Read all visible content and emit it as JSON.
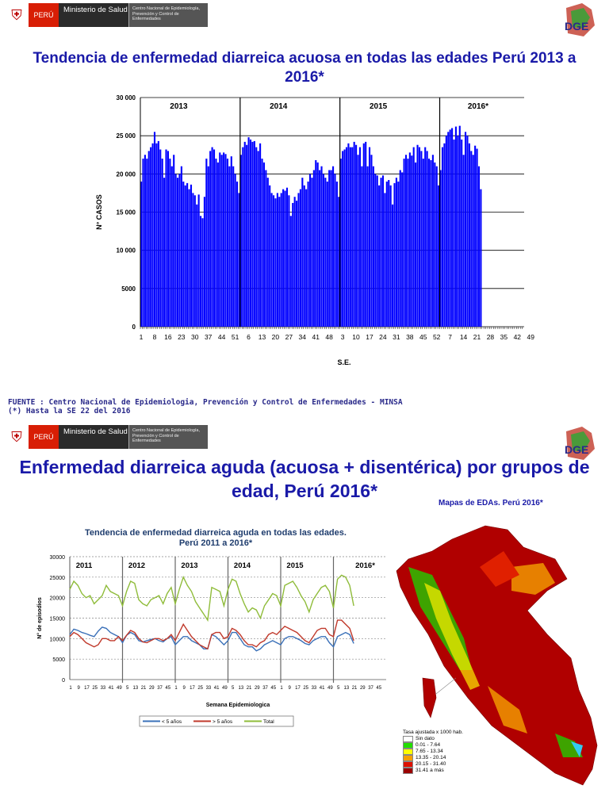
{
  "header": {
    "country": "PERÚ",
    "ministry": "Ministerio de Salud",
    "center": "Centro Nacional de Epidemiología, Prevención y Control de Enfermedades",
    "logo_text": "DGE"
  },
  "slide1": {
    "title": "Tendencia de enfermedad diarreica acuosa en todas las edades Perú 2013 a 2016*",
    "source": "FUENTE : Centro Nacional de Epidemiologia, Prevención y Control de Enfermedades - MINSA",
    "note": "(*) Hasta la SE 22 del 2016"
  },
  "slide2": {
    "title": "Enfermedad diarreica aguda (acuosa + disentérica) por grupos de edad, Perú 2016*",
    "map_title": "Mapas de EDAs. Perú 2016*",
    "map_legend": {
      "title": "Tasa ajustada x 1000 hab.",
      "items": [
        {
          "label": "Sin dato",
          "color": "#ffffff"
        },
        {
          "label": "0.01 - 7.64",
          "color": "#22dd00"
        },
        {
          "label": "7.65 - 13.34",
          "color": "#ffff00"
        },
        {
          "label": "13.35 - 20.14",
          "color": "#f5a000"
        },
        {
          "label": "20.15 - 31.40",
          "color": "#dd1100"
        },
        {
          "label": "31.41 a más",
          "color": "#9a0000"
        }
      ]
    }
  },
  "chart_data": [
    {
      "type": "bar",
      "title": "Tendencia de enfermedad diarreica acuosa en todas las edades Perú 2013 a 2016*",
      "xlabel": "S.E.",
      "ylabel": "N° CASOS",
      "ylim": [
        0,
        30000
      ],
      "yticks": [
        "0",
        "5000",
        "10 000",
        "15 000",
        "20 000",
        "25 000",
        "30 000"
      ],
      "xticks": [
        "1",
        "8",
        "16",
        "23",
        "30",
        "37",
        "44",
        "51",
        "6",
        "13",
        "20",
        "27",
        "34",
        "41",
        "48",
        "3",
        "10",
        "17",
        "24",
        "31",
        "38",
        "45",
        "52",
        "7",
        "14",
        "21",
        "28",
        "35",
        "42",
        "49"
      ],
      "years": [
        "2013",
        "2014",
        "2015",
        "2016*"
      ],
      "color": "#0000ff",
      "values": [
        19000,
        22000,
        22500,
        22000,
        23000,
        23500,
        24000,
        25500,
        24000,
        24300,
        23200,
        22000,
        19500,
        23200,
        23000,
        22000,
        21000,
        22500,
        20000,
        19500,
        20000,
        21000,
        19000,
        18500,
        18800,
        18000,
        18600,
        17500,
        17200,
        16000,
        17300,
        14500,
        14200,
        17000,
        22000,
        21000,
        23000,
        23500,
        23200,
        22000,
        21500,
        22800,
        22500,
        22800,
        22600,
        22000,
        21000,
        22300,
        21000,
        20000,
        19000,
        17500,
        22500,
        23500,
        24200,
        23800,
        24800,
        24500,
        24200,
        24300,
        23500,
        23000,
        24000,
        22000,
        21500,
        20500,
        19500,
        18500,
        17500,
        17200,
        16800,
        17500,
        17000,
        17500,
        18000,
        17800,
        18200,
        17200,
        14500,
        16200,
        17000,
        16500,
        17500,
        18000,
        19500,
        18500,
        18000,
        19000,
        20000,
        19500,
        20500,
        21800,
        21500,
        20500,
        21000,
        20000,
        19500,
        19000,
        20500,
        20500,
        21000,
        20000,
        19000,
        17000,
        22000,
        23000,
        23200,
        23500,
        24000,
        23500,
        23500,
        24200,
        23800,
        22500,
        23500,
        21000,
        24000,
        24200,
        21000,
        23500,
        22500,
        21000,
        20000,
        19800,
        18500,
        19500,
        19800,
        17500,
        19000,
        19200,
        18500,
        16000,
        18800,
        19500,
        19000,
        20500,
        20200,
        22000,
        22500,
        22000,
        22800,
        22400,
        23500,
        21500,
        23800,
        23500,
        23000,
        22000,
        23500,
        23000,
        22000,
        21800,
        22500,
        21500,
        21000,
        18500,
        20500,
        23500,
        24000,
        25000,
        25500,
        25800,
        26000,
        24500,
        26200,
        25000,
        26300,
        24500,
        22500,
        25500,
        25000,
        24000,
        23000,
        22500,
        23700,
        23300,
        21000,
        18000
      ]
    },
    {
      "type": "line",
      "title": "Tendencia de enfermedad diarreica aguda en todas las edades. Perú 2011 a 2016*",
      "xlabel": "Semana Epidemiologica",
      "ylabel": "N° de episodios",
      "ylim": [
        0,
        30000
      ],
      "yticks": [
        "0",
        "5000",
        "10000",
        "15000",
        "20000",
        "25000",
        "30000"
      ],
      "xticks": [
        "1",
        "9",
        "17",
        "25",
        "33",
        "41",
        "49",
        "5",
        "13",
        "21",
        "29",
        "37",
        "45",
        "1",
        "9",
        "17",
        "25",
        "33",
        "41",
        "49",
        "5",
        "13",
        "21",
        "29",
        "37",
        "45",
        "1",
        "9",
        "17",
        "25",
        "33",
        "41",
        "49",
        "5",
        "13",
        "21",
        "29",
        "37",
        "45"
      ],
      "years": [
        "2011",
        "2012",
        "2013",
        "2014",
        "2015",
        "2016*"
      ],
      "sample_weeks_per_year": [
        1,
        5,
        9,
        13,
        17,
        21,
        25,
        29,
        33,
        37,
        41,
        45,
        49
      ],
      "series": [
        {
          "name": "< 5 años",
          "color": "#3a70b8",
          "values": [
            11000,
            12300,
            12000,
            11500,
            11200,
            10800,
            10500,
            11800,
            12800,
            12500,
            11500,
            11000,
            10500,
            9000,
            10800,
            11500,
            11000,
            9500,
            9200,
            9500,
            9800,
            10000,
            9500,
            9200,
            10000,
            10500,
            8500,
            9500,
            10500,
            10500,
            9500,
            9000,
            8500,
            7500,
            7500,
            11000,
            10500,
            9500,
            8500,
            9500,
            11500,
            11500,
            10000,
            8500,
            8000,
            8000,
            7000,
            7500,
            8500,
            9000,
            9500,
            9000,
            8500,
            10000,
            10500,
            10500,
            10000,
            9500,
            8800,
            8500,
            9500,
            10000,
            10500,
            10500,
            9000,
            8000,
            10500,
            11000,
            11500,
            11000,
            8800
          ]
        },
        {
          "name": "> 5 años",
          "color": "#c0392b",
          "values": [
            10500,
            11500,
            11000,
            10000,
            9000,
            8500,
            8000,
            8500,
            10000,
            10000,
            9500,
            9500,
            10500,
            9500,
            10800,
            12000,
            11500,
            10000,
            9200,
            9000,
            9500,
            10000,
            10000,
            9500,
            10000,
            11000,
            9500,
            11500,
            13500,
            12000,
            10500,
            9500,
            8500,
            8000,
            7500,
            11000,
            11500,
            11500,
            10000,
            10500,
            12500,
            12000,
            11000,
            9500,
            8500,
            8500,
            8000,
            9000,
            9500,
            11000,
            11500,
            11000,
            12000,
            13000,
            12500,
            12000,
            11500,
            10500,
            9500,
            9000,
            10500,
            12000,
            12500,
            12500,
            11000,
            10500,
            14500,
            14500,
            13500,
            12500,
            9500
          ]
        },
        {
          "name": "Total",
          "color": "#8fbc3a",
          "values": [
            22000,
            24000,
            23000,
            21000,
            20000,
            20500,
            18500,
            19500,
            20500,
            23000,
            21500,
            21000,
            20500,
            18000,
            21500,
            24000,
            23500,
            19500,
            18500,
            18000,
            19500,
            20000,
            20500,
            18500,
            21000,
            22500,
            18500,
            22000,
            25000,
            23000,
            21500,
            19000,
            17500,
            16000,
            14500,
            22500,
            22000,
            21500,
            18000,
            22000,
            24500,
            24000,
            21000,
            18500,
            16500,
            17500,
            17000,
            15000,
            18000,
            19500,
            21000,
            20500,
            18000,
            23000,
            23500,
            24000,
            22500,
            20500,
            19000,
            16500,
            19500,
            21000,
            22500,
            23000,
            21500,
            17500,
            24500,
            25500,
            25000,
            23000,
            18000
          ]
        }
      ]
    }
  ]
}
